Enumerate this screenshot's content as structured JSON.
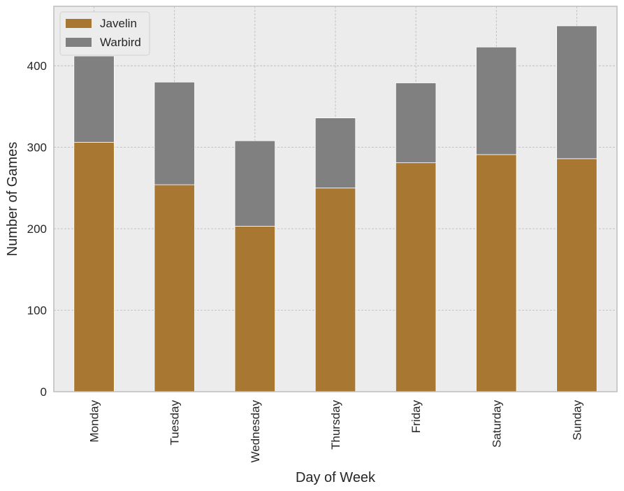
{
  "chart_data": {
    "type": "bar",
    "stacked": true,
    "categories": [
      "Monday",
      "Tuesday",
      "Wednesday",
      "Thursday",
      "Friday",
      "Saturday",
      "Sunday"
    ],
    "series": [
      {
        "name": "Javelin",
        "values": [
          306,
          254,
          203,
          250,
          281,
          291,
          286
        ],
        "color": "#a87832"
      },
      {
        "name": "Warbird",
        "values": [
          106,
          126,
          105,
          86,
          98,
          132,
          163
        ],
        "color": "#808080"
      }
    ],
    "xlabel": "Day of Week",
    "ylabel": "Number of Games",
    "ylim": [
      0,
      473
    ],
    "yticks": [
      0,
      100,
      200,
      300,
      400
    ],
    "grid": true,
    "legend_position": "top-left",
    "plot_background": "#ececec"
  }
}
